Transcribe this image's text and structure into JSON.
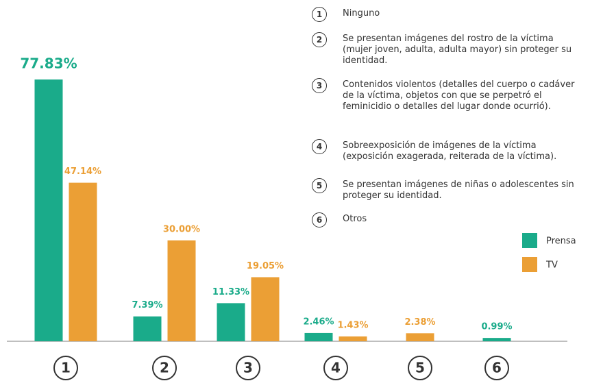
{
  "chart_data": {
    "type": "bar",
    "categories": [
      "1",
      "2",
      "3",
      "4",
      "5",
      "6"
    ],
    "category_descriptions": [
      "Ninguno",
      "Se presentan imágenes del rostro de la víctima (mujer joven, adulta, adulta mayor) sin proteger su identidad.",
      "Contenidos violentos (detalles del cuerpo o cadáver de la víctima, objetos con que se perpetró el feminicidio o detalles del lugar donde ocurrió).",
      "Sobreexposición de imágenes de la víctima (exposición exagerada, reiterada de la víctima).",
      "Se presentan imágenes de niñas o adolescentes sin proteger su identidad.",
      "Otros"
    ],
    "series": [
      {
        "name": "Prensa",
        "color": "#1aab8a",
        "values": [
          77.83,
          7.39,
          11.33,
          2.46,
          null,
          0.99
        ],
        "value_labels": [
          "77.83%",
          "7.39%",
          "11.33%",
          "2.46%",
          null,
          "0.99%"
        ]
      },
      {
        "name": "TV",
        "color": "#eb9f35",
        "values": [
          47.14,
          30.0,
          19.05,
          1.43,
          2.38,
          null
        ],
        "value_labels": [
          "47.14%",
          "30.00%",
          "19.05%",
          "1.43%",
          "2.38%",
          null
        ]
      }
    ]
  }
}
